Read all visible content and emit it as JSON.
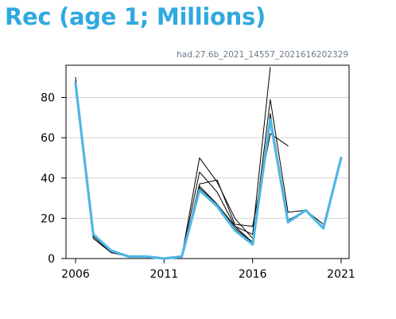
{
  "chart_data": {
    "type": "line",
    "title": "Rec (age 1; Millions)",
    "subtitle": "had.27.6b_2021_14557_2021616202329",
    "xlim": [
      2006,
      2021
    ],
    "ylim": [
      0,
      96
    ],
    "x_ticks": [
      "2006",
      "2011",
      "2016",
      "2021"
    ],
    "y_ticks": [
      "0",
      "20",
      "40",
      "60",
      "80"
    ],
    "y_grid": true,
    "colors": {
      "title": "#2fa9df",
      "current": "#4fb6e3",
      "previous": "#000000",
      "grid": "#d3d3d3"
    },
    "series": [
      {
        "role": "previous",
        "x": [
          2006,
          2007,
          2008,
          2009,
          2010,
          2011,
          2012,
          2013,
          2014,
          2015,
          2016
        ],
        "y": [
          90,
          10,
          3,
          1,
          1,
          0,
          1,
          50,
          38,
          20,
          10
        ]
      },
      {
        "role": "previous",
        "x": [
          2006,
          2007,
          2008,
          2009,
          2010,
          2011,
          2012,
          2013,
          2014,
          2015,
          2016,
          2017
        ],
        "y": [
          88,
          11,
          3,
          1,
          1,
          0,
          1,
          43,
          33,
          16,
          12,
          95
        ]
      },
      {
        "role": "previous",
        "x": [
          2006,
          2007,
          2008,
          2009,
          2010,
          2011,
          2012,
          2013,
          2014,
          2015,
          2016,
          2017,
          2018
        ],
        "y": [
          87,
          12,
          4,
          1,
          1,
          0,
          1,
          37,
          39,
          17,
          16,
          62,
          56
        ]
      },
      {
        "role": "previous",
        "x": [
          2006,
          2007,
          2008,
          2009,
          2010,
          2011,
          2012,
          2013,
          2014,
          2015,
          2016,
          2017,
          2018,
          2019
        ],
        "y": [
          87,
          12,
          4,
          1,
          1,
          0,
          1,
          36,
          27,
          16,
          8,
          79,
          23,
          24
        ]
      },
      {
        "role": "previous",
        "x": [
          2006,
          2007,
          2008,
          2009,
          2010,
          2011,
          2012,
          2013,
          2014,
          2015,
          2016,
          2017,
          2018,
          2019,
          2020
        ],
        "y": [
          87,
          12,
          4,
          1,
          1,
          0,
          1,
          35,
          27,
          15,
          8,
          72,
          19,
          24,
          17
        ]
      },
      {
        "role": "current",
        "x": [
          2006,
          2007,
          2008,
          2009,
          2010,
          2011,
          2012,
          2013,
          2014,
          2015,
          2016,
          2017,
          2018,
          2019,
          2020,
          2021
        ],
        "y": [
          87,
          12,
          4,
          1,
          1,
          0,
          1,
          34,
          26,
          14,
          7,
          69,
          18,
          24,
          15,
          50
        ]
      }
    ]
  }
}
